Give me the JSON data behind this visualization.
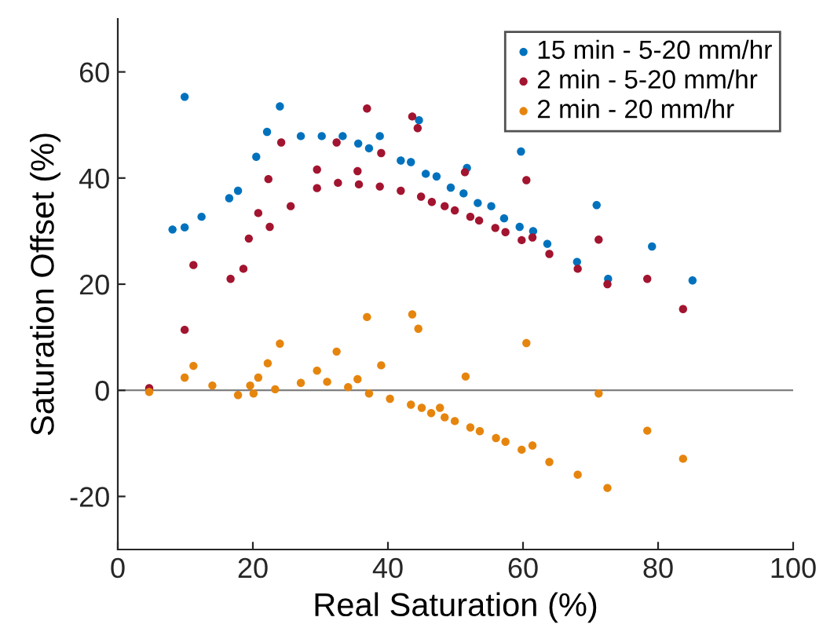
{
  "chart_data": {
    "type": "scatter",
    "xlabel": "Real Saturation (%)",
    "ylabel": "Saturation Offset (%)",
    "xlim": [
      0,
      100
    ],
    "xticks": [
      0,
      20,
      40,
      60,
      80,
      100
    ],
    "ylim": [
      -30,
      70
    ],
    "yticks": [
      -20,
      0,
      20,
      40,
      60
    ],
    "grid": false,
    "legend": "top right",
    "marker": "circle",
    "ref_lines": [
      {
        "axis": "y",
        "value": 0,
        "color": "#808080"
      }
    ],
    "series": [
      {
        "name": "15 min - 5-20 mm/hr",
        "color": "#0072bd",
        "x": [
          8.1,
          9.9,
          12.4,
          16.5,
          17.8,
          20.5,
          22.1,
          24.0,
          27.1,
          30.2,
          33.3,
          35.6,
          37.2,
          38.8,
          39.1,
          41.9,
          43.4,
          44.6,
          45.6,
          47.2,
          49.3,
          51.2,
          51.7,
          53.3,
          55.3,
          57.2,
          59.5,
          59.7,
          61.5,
          63.6,
          68.0,
          70.9,
          72.6,
          79.1,
          85.1,
          9.9
        ],
        "values": [
          30.3,
          30.7,
          32.7,
          36.2,
          37.6,
          44.0,
          48.7,
          53.5,
          47.9,
          47.9,
          47.9,
          46.5,
          45.6,
          47.9,
          null,
          43.3,
          43.0,
          50.9,
          40.8,
          40.3,
          38.2,
          37.1,
          41.9,
          35.3,
          34.7,
          32.4,
          30.8,
          45.0,
          30.0,
          27.6,
          24.2,
          34.9,
          21.0,
          27.1,
          20.7,
          55.3
        ]
      },
      {
        "name": "2 min - 5-20 mm/hr",
        "color": "#a2142f",
        "x": [
          4.65,
          9.9,
          11.2,
          16.7,
          18.6,
          19.4,
          20.8,
          22.3,
          22.5,
          24.2,
          25.6,
          29.5,
          29.5,
          32.4,
          32.6,
          35.5,
          35.7,
          36.9,
          38.8,
          39.0,
          41.9,
          43.6,
          44.4,
          44.9,
          46.5,
          48.4,
          49.9,
          51.4,
          52.2,
          53.5,
          55.9,
          57.4,
          59.8,
          60.5,
          61.4,
          63.9,
          68.1,
          71.2,
          72.5,
          78.4,
          83.7
        ],
        "values": [
          0.4,
          11.4,
          23.6,
          21.0,
          22.9,
          28.6,
          33.4,
          39.8,
          30.8,
          46.7,
          34.7,
          38.1,
          41.6,
          46.7,
          39.1,
          41.3,
          38.8,
          53.1,
          38.4,
          44.7,
          37.6,
          51.6,
          49.4,
          36.5,
          35.5,
          34.7,
          33.9,
          41.1,
          32.7,
          32.0,
          30.6,
          29.8,
          28.3,
          39.6,
          28.8,
          25.7,
          22.9,
          28.4,
          20.0,
          21.0,
          15.3
        ]
      },
      {
        "name": "2 min - 20 mm/hr",
        "color": "#e6850e",
        "x": [
          4.65,
          9.9,
          11.2,
          14.0,
          17.8,
          19.6,
          20.1,
          20.8,
          22.2,
          23.3,
          24.0,
          27.1,
          29.5,
          31.0,
          32.4,
          34.1,
          35.5,
          36.9,
          37.2,
          39.0,
          40.3,
          43.4,
          43.6,
          44.5,
          45.0,
          46.4,
          47.7,
          48.4,
          49.9,
          51.5,
          52.2,
          53.6,
          56.0,
          57.4,
          59.8,
          60.5,
          61.4,
          63.9,
          68.1,
          71.2,
          72.5,
          78.4,
          83.7
        ],
        "values": [
          -0.3,
          2.4,
          4.6,
          0.9,
          -0.9,
          0.9,
          -0.6,
          2.4,
          5.1,
          0.2,
          8.8,
          1.4,
          3.7,
          1.6,
          7.3,
          0.6,
          2.1,
          13.8,
          -0.6,
          4.7,
          -1.6,
          -2.7,
          14.3,
          11.6,
          -3.3,
          -4.3,
          -3.3,
          -5.1,
          -5.8,
          2.6,
          -7.0,
          -7.7,
          -9.0,
          -9.7,
          -11.2,
          8.9,
          -10.4,
          -13.5,
          -15.9,
          -0.6,
          -18.4,
          -7.6,
          -12.9
        ]
      }
    ]
  }
}
